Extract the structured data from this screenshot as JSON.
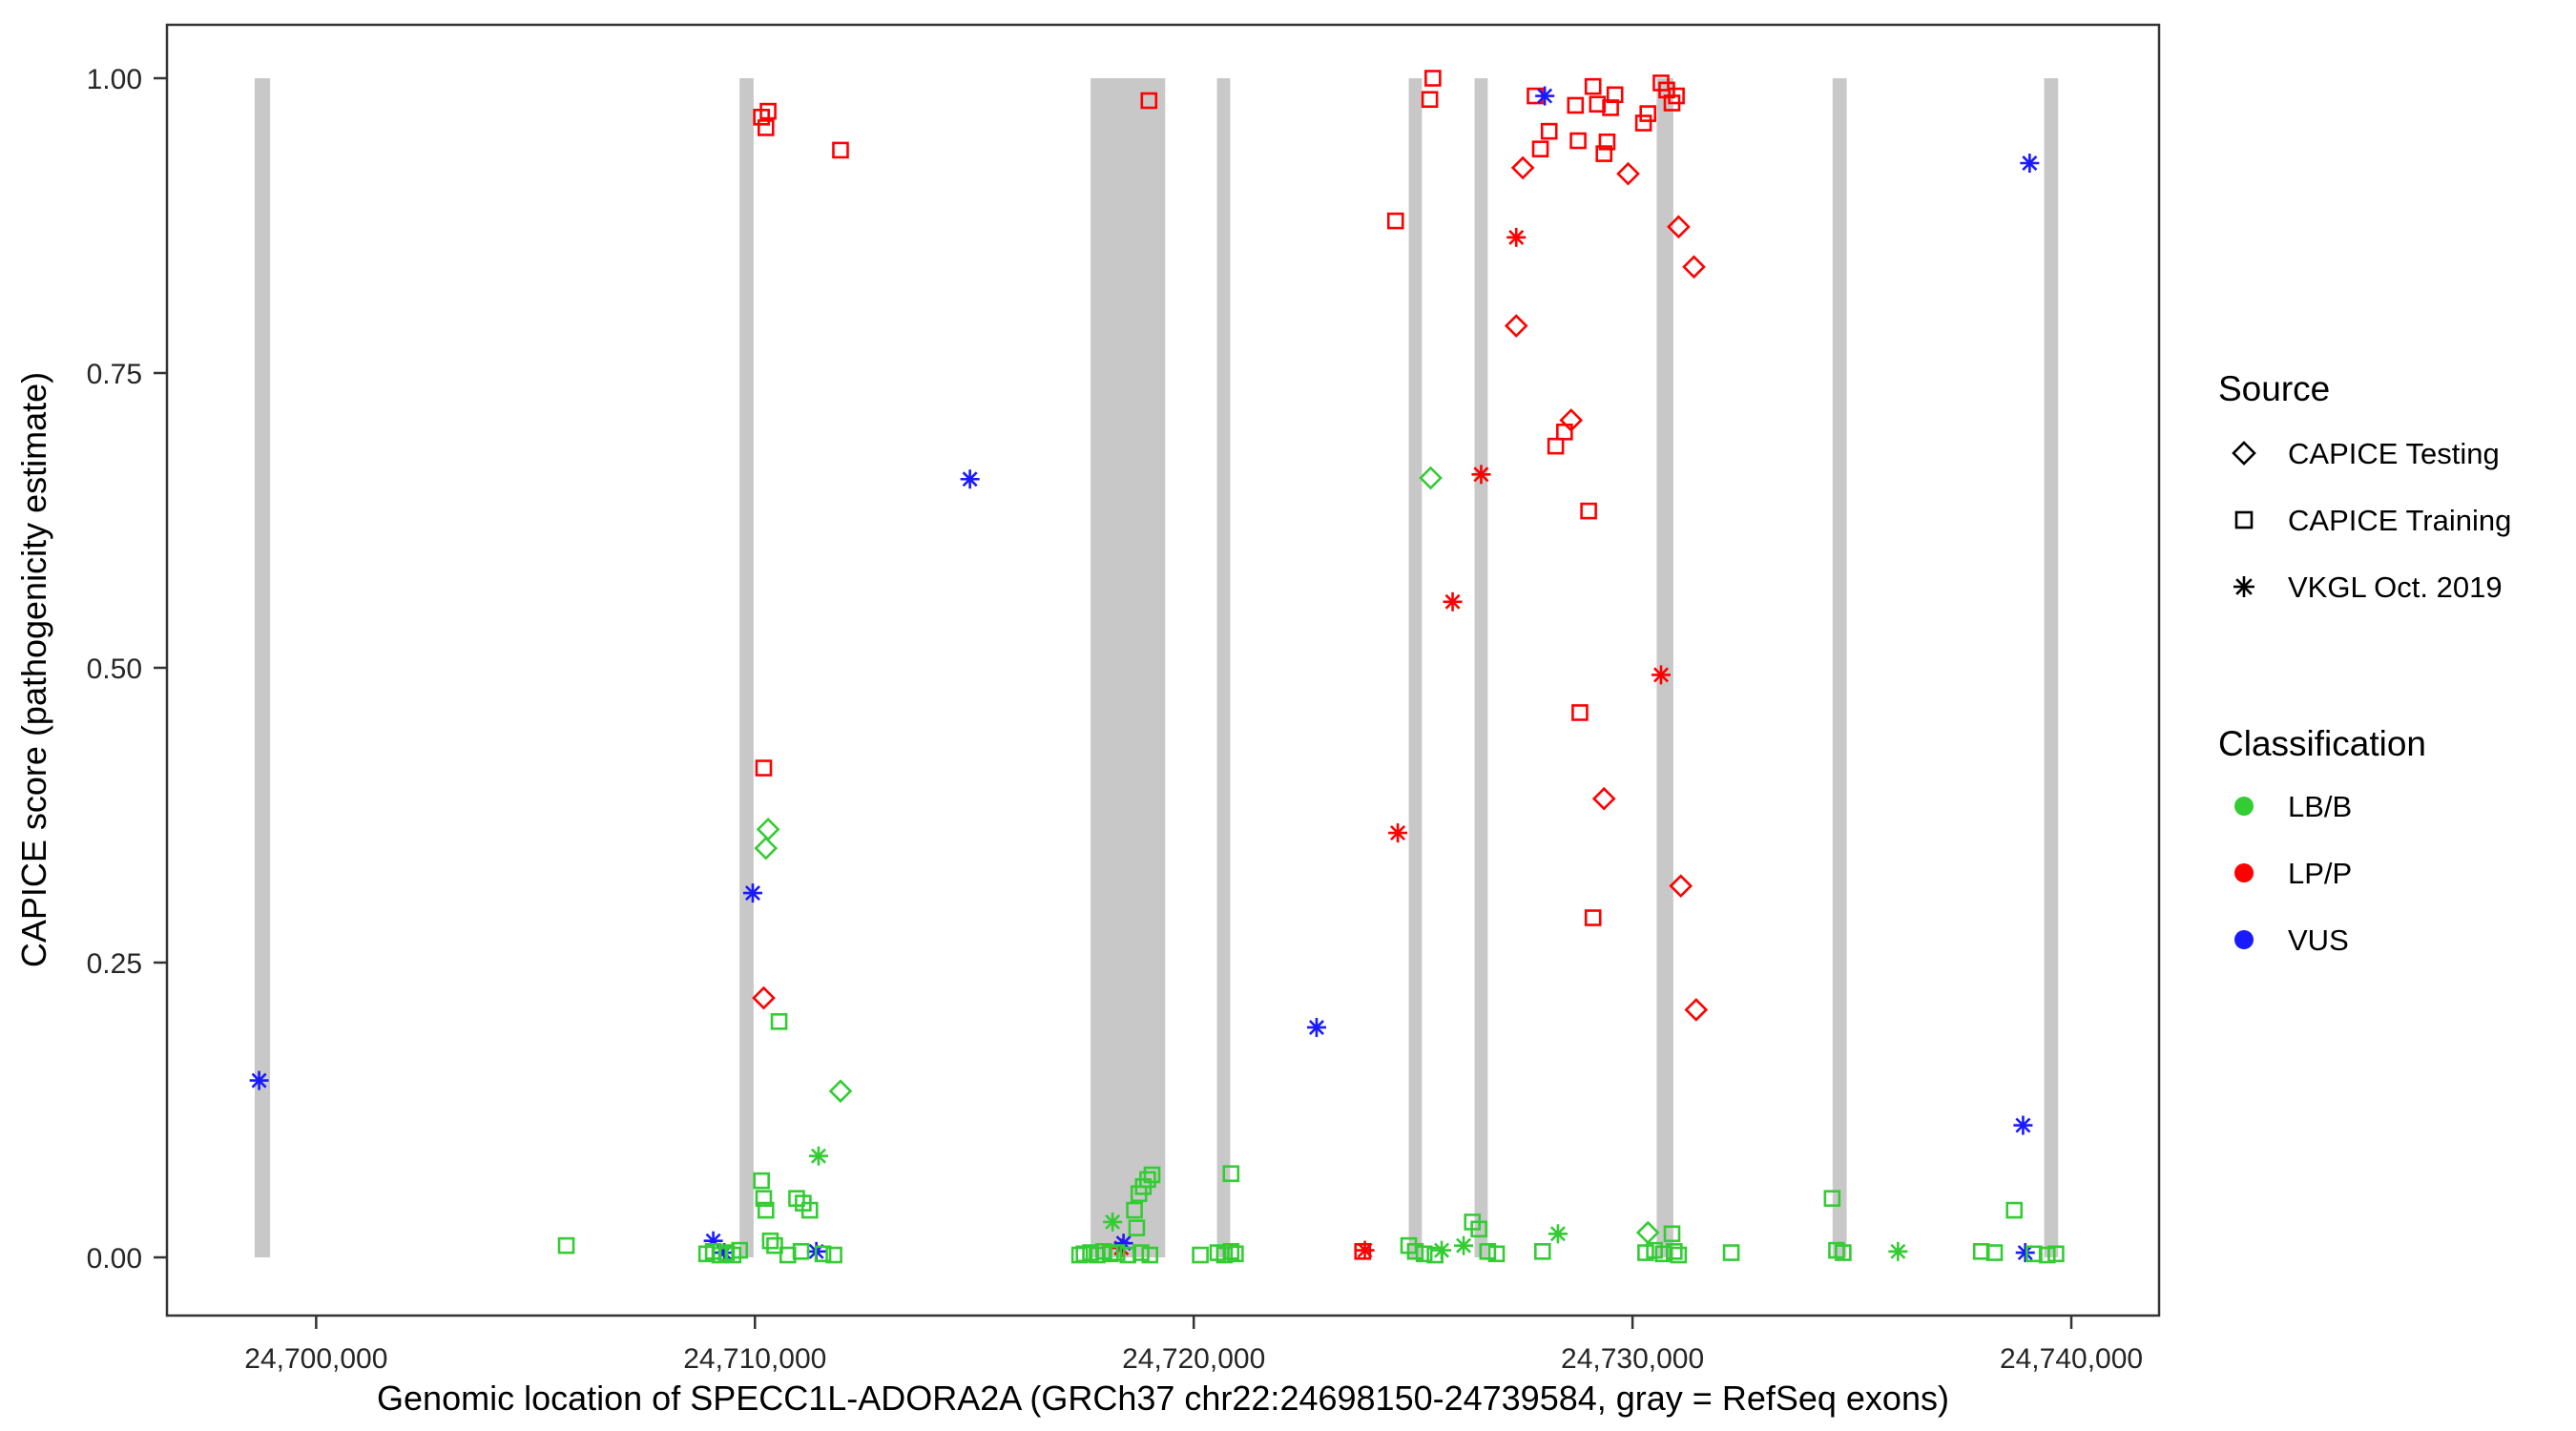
{
  "figure": {
    "background": "#ffffff",
    "panel_border_color": "#333333"
  },
  "chart_data": {
    "type": "scatter",
    "title": "",
    "xlabel": "Genomic location of SPECC1L-ADORA2A (GRCh37 chr22:24698150-24739584, gray = RefSeq exons)",
    "ylabel": "CAPICE score (pathogenicity estimate)",
    "xlim": [
      24696600,
      24742000
    ],
    "ylim": [
      0,
      1
    ],
    "grid": "off",
    "legend_position": "right",
    "x_ticks": [
      {
        "value": 24700000,
        "label": "24,700,000"
      },
      {
        "value": 24710000,
        "label": "24,710,000"
      },
      {
        "value": 24720000,
        "label": "24,720,000"
      },
      {
        "value": 24730000,
        "label": "24,730,000"
      },
      {
        "value": 24740000,
        "label": "24,740,000"
      }
    ],
    "y_ticks": [
      {
        "value": 0.0,
        "label": "0.00"
      },
      {
        "value": 0.25,
        "label": "0.25"
      },
      {
        "value": 0.5,
        "label": "0.50"
      },
      {
        "value": 0.75,
        "label": "0.75"
      },
      {
        "value": 1.0,
        "label": "1.00"
      }
    ],
    "exon_color": "#c8c8c8",
    "exons": [
      [
        24698600,
        24698950
      ],
      [
        24709650,
        24709970
      ],
      [
        24717650,
        24719350
      ],
      [
        24720530,
        24720830
      ],
      [
        24724900,
        24725200
      ],
      [
        24726400,
        24726700
      ],
      [
        24730550,
        24730930
      ],
      [
        24734560,
        24734880
      ],
      [
        24739380,
        24739700
      ]
    ],
    "class_colors": {
      "LB/B": "#33cc33",
      "LP/P": "#ff0000",
      "VUS": "#1a1aff"
    },
    "source_shapes": {
      "CAPICE Testing": "diamond",
      "CAPICE Training": "square",
      "VKGL Oct. 2019": "star"
    },
    "legend": {
      "source": {
        "title": "Source",
        "items": [
          {
            "shape": "diamond",
            "label": "CAPICE Testing"
          },
          {
            "shape": "square",
            "label": "CAPICE Training"
          },
          {
            "shape": "star",
            "label": "VKGL Oct. 2019"
          }
        ]
      },
      "classification": {
        "title": "Classification",
        "items": [
          {
            "label": "LB/B",
            "color": "#33cc33"
          },
          {
            "label": "LP/P",
            "color": "#ff0000"
          },
          {
            "label": "VUS",
            "color": "#1a1aff"
          }
        ]
      }
    },
    "points": [
      {
        "x": 24710150,
        "y": 0.967,
        "shape": "square",
        "cls": "LP/P"
      },
      {
        "x": 24710300,
        "y": 0.972,
        "shape": "square",
        "cls": "LP/P"
      },
      {
        "x": 24710250,
        "y": 0.958,
        "shape": "square",
        "cls": "LP/P"
      },
      {
        "x": 24711950,
        "y": 0.939,
        "shape": "square",
        "cls": "LP/P"
      },
      {
        "x": 24710200,
        "y": 0.415,
        "shape": "square",
        "cls": "LP/P"
      },
      {
        "x": 24718980,
        "y": 0.981,
        "shape": "square",
        "cls": "LP/P"
      },
      {
        "x": 24724600,
        "y": 0.879,
        "shape": "square",
        "cls": "LP/P"
      },
      {
        "x": 24725450,
        "y": 1.0,
        "shape": "square",
        "cls": "LP/P"
      },
      {
        "x": 24725380,
        "y": 0.982,
        "shape": "square",
        "cls": "LP/P"
      },
      {
        "x": 24727780,
        "y": 0.985,
        "shape": "square",
        "cls": "LP/P"
      },
      {
        "x": 24727900,
        "y": 0.94,
        "shape": "square",
        "cls": "LP/P"
      },
      {
        "x": 24728100,
        "y": 0.955,
        "shape": "square",
        "cls": "LP/P"
      },
      {
        "x": 24728700,
        "y": 0.977,
        "shape": "square",
        "cls": "LP/P"
      },
      {
        "x": 24728760,
        "y": 0.947,
        "shape": "square",
        "cls": "LP/P"
      },
      {
        "x": 24729100,
        "y": 0.993,
        "shape": "square",
        "cls": "LP/P"
      },
      {
        "x": 24729200,
        "y": 0.978,
        "shape": "square",
        "cls": "LP/P"
      },
      {
        "x": 24729350,
        "y": 0.936,
        "shape": "square",
        "cls": "LP/P"
      },
      {
        "x": 24729420,
        "y": 0.946,
        "shape": "square",
        "cls": "LP/P"
      },
      {
        "x": 24729500,
        "y": 0.975,
        "shape": "square",
        "cls": "LP/P"
      },
      {
        "x": 24729600,
        "y": 0.986,
        "shape": "square",
        "cls": "LP/P"
      },
      {
        "x": 24730350,
        "y": 0.97,
        "shape": "square",
        "cls": "LP/P"
      },
      {
        "x": 24730250,
        "y": 0.962,
        "shape": "square",
        "cls": "LP/P"
      },
      {
        "x": 24730650,
        "y": 0.996,
        "shape": "square",
        "cls": "LP/P"
      },
      {
        "x": 24730780,
        "y": 0.99,
        "shape": "square",
        "cls": "LP/P"
      },
      {
        "x": 24730900,
        "y": 0.979,
        "shape": "square",
        "cls": "LP/P"
      },
      {
        "x": 24731000,
        "y": 0.985,
        "shape": "square",
        "cls": "LP/P"
      },
      {
        "x": 24728450,
        "y": 0.7,
        "shape": "square",
        "cls": "LP/P"
      },
      {
        "x": 24728250,
        "y": 0.688,
        "shape": "square",
        "cls": "LP/P"
      },
      {
        "x": 24729000,
        "y": 0.633,
        "shape": "square",
        "cls": "LP/P"
      },
      {
        "x": 24728800,
        "y": 0.462,
        "shape": "square",
        "cls": "LP/P"
      },
      {
        "x": 24729100,
        "y": 0.288,
        "shape": "square",
        "cls": "LP/P"
      },
      {
        "x": 24723850,
        "y": 0.005,
        "shape": "square",
        "cls": "LP/P"
      },
      {
        "x": 24710200,
        "y": 0.22,
        "shape": "diamond",
        "cls": "LP/P"
      },
      {
        "x": 24727500,
        "y": 0.924,
        "shape": "diamond",
        "cls": "LP/P"
      },
      {
        "x": 24729900,
        "y": 0.919,
        "shape": "diamond",
        "cls": "LP/P"
      },
      {
        "x": 24727350,
        "y": 0.79,
        "shape": "diamond",
        "cls": "LP/P"
      },
      {
        "x": 24728600,
        "y": 0.71,
        "shape": "diamond",
        "cls": "LP/P"
      },
      {
        "x": 24729350,
        "y": 0.389,
        "shape": "diamond",
        "cls": "LP/P"
      },
      {
        "x": 24731050,
        "y": 0.874,
        "shape": "diamond",
        "cls": "LP/P"
      },
      {
        "x": 24731400,
        "y": 0.84,
        "shape": "diamond",
        "cls": "LP/P"
      },
      {
        "x": 24731100,
        "y": 0.315,
        "shape": "diamond",
        "cls": "LP/P"
      },
      {
        "x": 24731450,
        "y": 0.21,
        "shape": "diamond",
        "cls": "LP/P"
      },
      {
        "x": 24727350,
        "y": 0.865,
        "shape": "star",
        "cls": "LP/P"
      },
      {
        "x": 24726550,
        "y": 0.664,
        "shape": "star",
        "cls": "LP/P"
      },
      {
        "x": 24725900,
        "y": 0.556,
        "shape": "star",
        "cls": "LP/P"
      },
      {
        "x": 24724650,
        "y": 0.36,
        "shape": "star",
        "cls": "LP/P"
      },
      {
        "x": 24730650,
        "y": 0.494,
        "shape": "star",
        "cls": "LP/P"
      },
      {
        "x": 24723900,
        "y": 0.006,
        "shape": "star",
        "cls": "LP/P"
      },
      {
        "x": 24718350,
        "y": 0.008,
        "shape": "star",
        "cls": "LP/P"
      },
      {
        "x": 24698700,
        "y": 0.15,
        "shape": "star",
        "cls": "VUS"
      },
      {
        "x": 24709950,
        "y": 0.309,
        "shape": "star",
        "cls": "VUS"
      },
      {
        "x": 24714900,
        "y": 0.66,
        "shape": "star",
        "cls": "VUS"
      },
      {
        "x": 24722800,
        "y": 0.195,
        "shape": "star",
        "cls": "VUS"
      },
      {
        "x": 24728000,
        "y": 0.985,
        "shape": "star",
        "cls": "VUS"
      },
      {
        "x": 24739050,
        "y": 0.928,
        "shape": "star",
        "cls": "VUS"
      },
      {
        "x": 24738900,
        "y": 0.112,
        "shape": "star",
        "cls": "VUS"
      },
      {
        "x": 24709050,
        "y": 0.014,
        "shape": "star",
        "cls": "VUS"
      },
      {
        "x": 24709300,
        "y": 0.004,
        "shape": "star",
        "cls": "VUS"
      },
      {
        "x": 24711400,
        "y": 0.005,
        "shape": "star",
        "cls": "VUS"
      },
      {
        "x": 24718400,
        "y": 0.012,
        "shape": "star",
        "cls": "VUS"
      },
      {
        "x": 24738950,
        "y": 0.004,
        "shape": "star",
        "cls": "VUS"
      },
      {
        "x": 24710300,
        "y": 0.363,
        "shape": "diamond",
        "cls": "LB/B"
      },
      {
        "x": 24710250,
        "y": 0.347,
        "shape": "diamond",
        "cls": "LB/B"
      },
      {
        "x": 24711950,
        "y": 0.141,
        "shape": "diamond",
        "cls": "LB/B"
      },
      {
        "x": 24725400,
        "y": 0.661,
        "shape": "diamond",
        "cls": "LB/B"
      },
      {
        "x": 24730350,
        "y": 0.021,
        "shape": "diamond",
        "cls": "LB/B"
      },
      {
        "x": 24711450,
        "y": 0.086,
        "shape": "star",
        "cls": "LB/B"
      },
      {
        "x": 24718150,
        "y": 0.03,
        "shape": "star",
        "cls": "LB/B"
      },
      {
        "x": 24725650,
        "y": 0.006,
        "shape": "star",
        "cls": "LB/B"
      },
      {
        "x": 24728300,
        "y": 0.02,
        "shape": "star",
        "cls": "LB/B"
      },
      {
        "x": 24736050,
        "y": 0.005,
        "shape": "star",
        "cls": "LB/B"
      },
      {
        "x": 24726150,
        "y": 0.01,
        "shape": "star",
        "cls": "LB/B"
      },
      {
        "x": 24705700,
        "y": 0.01,
        "shape": "square",
        "cls": "LB/B"
      },
      {
        "x": 24708900,
        "y": 0.003,
        "shape": "square",
        "cls": "LB/B"
      },
      {
        "x": 24709050,
        "y": 0.005,
        "shape": "square",
        "cls": "LB/B"
      },
      {
        "x": 24709200,
        "y": 0.002,
        "shape": "square",
        "cls": "LB/B"
      },
      {
        "x": 24709350,
        "y": 0.004,
        "shape": "square",
        "cls": "LB/B"
      },
      {
        "x": 24709500,
        "y": 0.002,
        "shape": "square",
        "cls": "LB/B"
      },
      {
        "x": 24709650,
        "y": 0.006,
        "shape": "square",
        "cls": "LB/B"
      },
      {
        "x": 24710150,
        "y": 0.065,
        "shape": "square",
        "cls": "LB/B"
      },
      {
        "x": 24710200,
        "y": 0.05,
        "shape": "square",
        "cls": "LB/B"
      },
      {
        "x": 24710250,
        "y": 0.04,
        "shape": "square",
        "cls": "LB/B"
      },
      {
        "x": 24710350,
        "y": 0.014,
        "shape": "square",
        "cls": "LB/B"
      },
      {
        "x": 24710450,
        "y": 0.01,
        "shape": "square",
        "cls": "LB/B"
      },
      {
        "x": 24710550,
        "y": 0.2,
        "shape": "square",
        "cls": "LB/B"
      },
      {
        "x": 24710750,
        "y": 0.002,
        "shape": "square",
        "cls": "LB/B"
      },
      {
        "x": 24710950,
        "y": 0.05,
        "shape": "square",
        "cls": "LB/B"
      },
      {
        "x": 24711100,
        "y": 0.046,
        "shape": "square",
        "cls": "LB/B"
      },
      {
        "x": 24711250,
        "y": 0.04,
        "shape": "square",
        "cls": "LB/B"
      },
      {
        "x": 24711050,
        "y": 0.005,
        "shape": "square",
        "cls": "LB/B"
      },
      {
        "x": 24711550,
        "y": 0.003,
        "shape": "square",
        "cls": "LB/B"
      },
      {
        "x": 24711800,
        "y": 0.002,
        "shape": "square",
        "cls": "LB/B"
      },
      {
        "x": 24717400,
        "y": 0.002,
        "shape": "square",
        "cls": "LB/B"
      },
      {
        "x": 24717500,
        "y": 0.003,
        "shape": "square",
        "cls": "LB/B"
      },
      {
        "x": 24717650,
        "y": 0.004,
        "shape": "square",
        "cls": "LB/B"
      },
      {
        "x": 24717800,
        "y": 0.002,
        "shape": "square",
        "cls": "LB/B"
      },
      {
        "x": 24717950,
        "y": 0.005,
        "shape": "square",
        "cls": "LB/B"
      },
      {
        "x": 24718100,
        "y": 0.003,
        "shape": "square",
        "cls": "LB/B"
      },
      {
        "x": 24718250,
        "y": 0.004,
        "shape": "square",
        "cls": "LB/B"
      },
      {
        "x": 24718500,
        "y": 0.002,
        "shape": "square",
        "cls": "LB/B"
      },
      {
        "x": 24718650,
        "y": 0.04,
        "shape": "square",
        "cls": "LB/B"
      },
      {
        "x": 24718750,
        "y": 0.054,
        "shape": "square",
        "cls": "LB/B"
      },
      {
        "x": 24718850,
        "y": 0.06,
        "shape": "square",
        "cls": "LB/B"
      },
      {
        "x": 24718950,
        "y": 0.066,
        "shape": "square",
        "cls": "LB/B"
      },
      {
        "x": 24719050,
        "y": 0.07,
        "shape": "square",
        "cls": "LB/B"
      },
      {
        "x": 24718700,
        "y": 0.025,
        "shape": "square",
        "cls": "LB/B"
      },
      {
        "x": 24718800,
        "y": 0.004,
        "shape": "square",
        "cls": "LB/B"
      },
      {
        "x": 24719000,
        "y": 0.002,
        "shape": "square",
        "cls": "LB/B"
      },
      {
        "x": 24720150,
        "y": 0.002,
        "shape": "square",
        "cls": "LB/B"
      },
      {
        "x": 24720850,
        "y": 0.071,
        "shape": "square",
        "cls": "LB/B"
      },
      {
        "x": 24720550,
        "y": 0.004,
        "shape": "square",
        "cls": "LB/B"
      },
      {
        "x": 24720700,
        "y": 0.002,
        "shape": "square",
        "cls": "LB/B"
      },
      {
        "x": 24720850,
        "y": 0.005,
        "shape": "square",
        "cls": "LB/B"
      },
      {
        "x": 24720950,
        "y": 0.003,
        "shape": "square",
        "cls": "LB/B"
      },
      {
        "x": 24724900,
        "y": 0.01,
        "shape": "square",
        "cls": "LB/B"
      },
      {
        "x": 24725050,
        "y": 0.005,
        "shape": "square",
        "cls": "LB/B"
      },
      {
        "x": 24725250,
        "y": 0.003,
        "shape": "square",
        "cls": "LB/B"
      },
      {
        "x": 24725500,
        "y": 0.002,
        "shape": "square",
        "cls": "LB/B"
      },
      {
        "x": 24726350,
        "y": 0.03,
        "shape": "square",
        "cls": "LB/B"
      },
      {
        "x": 24726500,
        "y": 0.024,
        "shape": "square",
        "cls": "LB/B"
      },
      {
        "x": 24726700,
        "y": 0.005,
        "shape": "square",
        "cls": "LB/B"
      },
      {
        "x": 24726900,
        "y": 0.003,
        "shape": "square",
        "cls": "LB/B"
      },
      {
        "x": 24727950,
        "y": 0.005,
        "shape": "square",
        "cls": "LB/B"
      },
      {
        "x": 24730300,
        "y": 0.004,
        "shape": "square",
        "cls": "LB/B"
      },
      {
        "x": 24730500,
        "y": 0.006,
        "shape": "square",
        "cls": "LB/B"
      },
      {
        "x": 24730700,
        "y": 0.003,
        "shape": "square",
        "cls": "LB/B"
      },
      {
        "x": 24730900,
        "y": 0.02,
        "shape": "square",
        "cls": "LB/B"
      },
      {
        "x": 24730950,
        "y": 0.005,
        "shape": "square",
        "cls": "LB/B"
      },
      {
        "x": 24731050,
        "y": 0.002,
        "shape": "square",
        "cls": "LB/B"
      },
      {
        "x": 24732250,
        "y": 0.004,
        "shape": "square",
        "cls": "LB/B"
      },
      {
        "x": 24734550,
        "y": 0.05,
        "shape": "square",
        "cls": "LB/B"
      },
      {
        "x": 24734650,
        "y": 0.006,
        "shape": "square",
        "cls": "LB/B"
      },
      {
        "x": 24734800,
        "y": 0.004,
        "shape": "square",
        "cls": "LB/B"
      },
      {
        "x": 24737950,
        "y": 0.005,
        "shape": "square",
        "cls": "LB/B"
      },
      {
        "x": 24738250,
        "y": 0.004,
        "shape": "square",
        "cls": "LB/B"
      },
      {
        "x": 24738700,
        "y": 0.04,
        "shape": "square",
        "cls": "LB/B"
      },
      {
        "x": 24739150,
        "y": 0.003,
        "shape": "square",
        "cls": "LB/B"
      },
      {
        "x": 24739450,
        "y": 0.002,
        "shape": "square",
        "cls": "LB/B"
      },
      {
        "x": 24739650,
        "y": 0.003,
        "shape": "square",
        "cls": "LB/B"
      }
    ]
  }
}
